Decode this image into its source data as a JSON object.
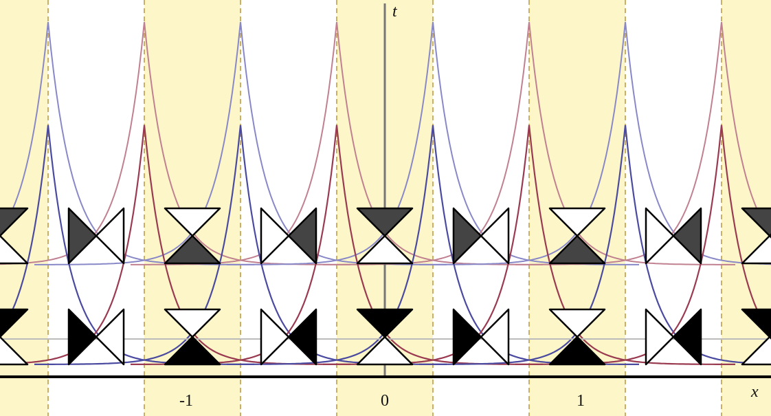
{
  "axes": {
    "t_label": "t",
    "x_label": "x"
  },
  "x_tick_labels": [
    "-1",
    "0",
    "1"
  ]
}
